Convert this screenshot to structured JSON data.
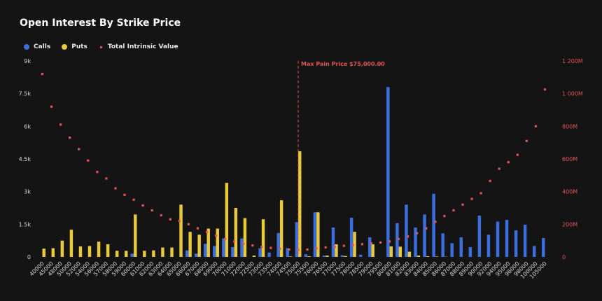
{
  "title": "Open Interest By Strike Price",
  "legend": [
    {
      "label": "Calls",
      "color": "#3b6fe0",
      "shape": "circle"
    },
    {
      "label": "Puts",
      "color": "#e8c93a",
      "shape": "circle"
    },
    {
      "label": "Total Intrinsic Value",
      "color": "#e05555",
      "shape": "square"
    }
  ],
  "colors": {
    "calls": "#3b6fe0",
    "puts": "#e8c93a",
    "intrinsic": "#e05555",
    "background": "#141414"
  },
  "chart_data": {
    "type": "bar",
    "title": "Open Interest By Strike Price",
    "categories": [
      "40000",
      "45000",
      "48000",
      "50000",
      "52000",
      "54000",
      "56000",
      "57000",
      "58000",
      "59000",
      "60000",
      "61000",
      "62000",
      "63000",
      "64000",
      "65000",
      "66000",
      "67000",
      "68000",
      "69000",
      "70000",
      "71000",
      "72000",
      "72500",
      "73000",
      "73500",
      "74000",
      "74500",
      "75000",
      "75500",
      "76000",
      "76500",
      "77000",
      "77500",
      "78000",
      "78500",
      "79000",
      "79500",
      "80000",
      "81000",
      "82000",
      "83000",
      "84000",
      "85000",
      "86000",
      "87000",
      "88000",
      "89000",
      "90000",
      "92000",
      "94000",
      "95000",
      "96000",
      "98000",
      "100000",
      "105000"
    ],
    "y_left": {
      "ticks": [
        "0",
        "1.5k",
        "3k",
        "4.5k",
        "6k",
        "7.5k",
        "9k"
      ],
      "range": [
        0,
        9000
      ]
    },
    "y_right": {
      "ticks": [
        "0",
        "200M",
        "400M",
        "600M",
        "800M",
        "1 000M",
        "1 200M"
      ],
      "range": [
        0,
        1200
      ]
    },
    "series": [
      {
        "name": "Calls",
        "type": "bar",
        "axis": "left",
        "values": [
          0,
          0,
          0,
          0,
          0,
          0,
          0,
          0,
          0,
          0,
          150,
          0,
          0,
          0,
          0,
          0,
          300,
          150,
          600,
          500,
          850,
          450,
          850,
          0,
          400,
          200,
          1100,
          400,
          1600,
          120,
          2050,
          60,
          1350,
          80,
          1800,
          100,
          900,
          0,
          7800,
          1550,
          2400,
          1350,
          1950,
          2900,
          1080,
          630,
          900,
          450,
          1900,
          1020,
          1620,
          1700,
          1220,
          1480,
          500,
          870
        ]
      },
      {
        "name": "Puts",
        "type": "bar",
        "axis": "left",
        "values": [
          380,
          400,
          750,
          1250,
          480,
          500,
          700,
          580,
          280,
          280,
          1950,
          280,
          300,
          430,
          430,
          2400,
          1150,
          1020,
          1300,
          1300,
          3400,
          2250,
          1780,
          60,
          1730,
          0,
          2600,
          20,
          4850,
          30,
          2050,
          60,
          580,
          40,
          1150,
          0,
          580,
          0,
          480,
          470,
          240,
          60,
          30,
          20,
          10,
          0,
          0,
          0,
          0,
          0,
          0,
          0,
          0,
          0,
          0,
          0
        ]
      },
      {
        "name": "Total Intrinsic Value",
        "type": "scatter",
        "axis": "right",
        "values": [
          1120,
          920,
          810,
          730,
          660,
          590,
          520,
          480,
          420,
          380,
          350,
          315,
          285,
          255,
          230,
          220,
          200,
          175,
          152,
          130,
          110,
          95,
          80,
          70,
          62,
          55,
          50,
          45,
          42,
          45,
          52,
          58,
          62,
          68,
          72,
          78,
          82,
          88,
          95,
          110,
          125,
          145,
          175,
          215,
          250,
          285,
          320,
          355,
          390,
          465,
          540,
          580,
          625,
          710,
          800,
          1025
        ]
      }
    ],
    "annotation": {
      "label": "Max Pain Price $75,000.00",
      "category": "75000"
    },
    "legend_position": "top-left",
    "grid": false
  }
}
